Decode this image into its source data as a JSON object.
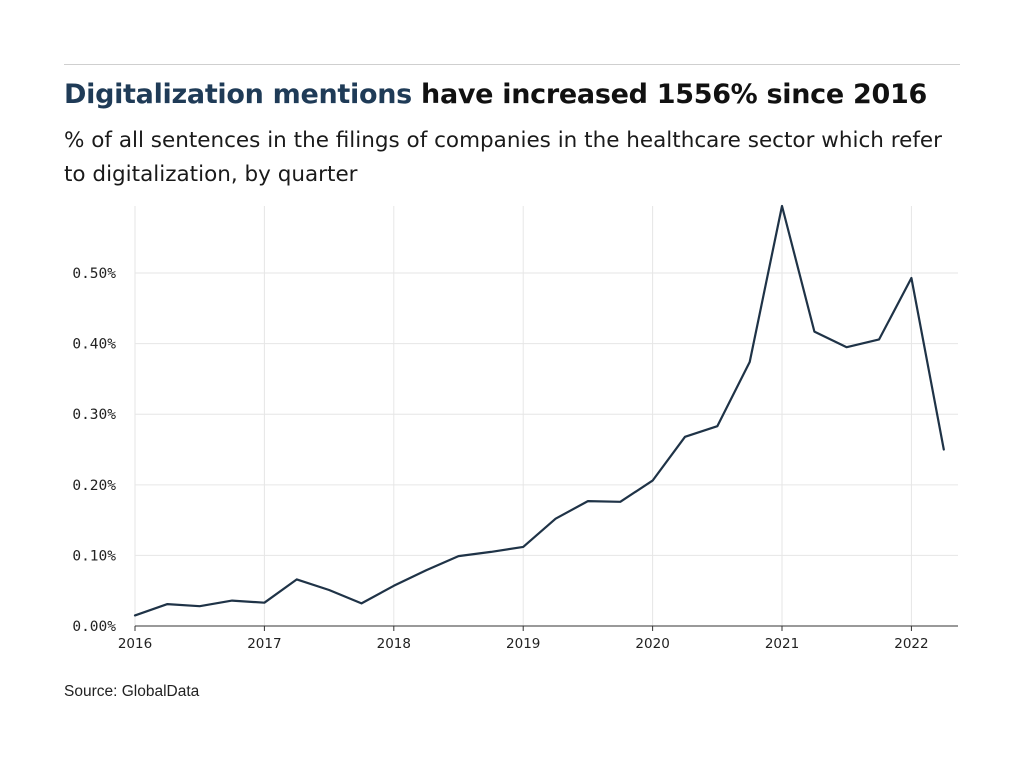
{
  "header": {
    "title_highlight": "Digitalization mentions",
    "title_rest": " have increased 1556% since 2016",
    "subtitle": "% of all sentences in the filings of companies in the healthcare sector which refer to digitalization, by quarter"
  },
  "source": "Source: GlobalData",
  "colors": {
    "line": "#1f3347",
    "grid": "#e6e6e6",
    "axis": "#333333",
    "highlight": "#1f3b57"
  },
  "chart_data": {
    "type": "line",
    "title": "Digitalization mentions have increased 1556% since 2016",
    "xlabel": "",
    "ylabel": "",
    "xlim": [
      2016,
      2022.36
    ],
    "ylim": [
      0,
      0.595
    ],
    "grid": true,
    "x_ticks": [
      2016,
      2017,
      2018,
      2019,
      2020,
      2021,
      2022
    ],
    "x_tick_labels": [
      "2016",
      "2017",
      "2018",
      "2019",
      "2020",
      "2021",
      "2022"
    ],
    "y_ticks": [
      0,
      0.1,
      0.2,
      0.3,
      0.4,
      0.5
    ],
    "y_tick_labels": [
      "0.00%",
      "0.10%",
      "0.20%",
      "0.30%",
      "0.40%",
      "0.50%"
    ],
    "series": [
      {
        "name": "Digitalization mentions (%)",
        "x": [
          2016,
          2016.25,
          2016.5,
          2016.75,
          2017,
          2017.25,
          2017.5,
          2017.75,
          2018,
          2018.25,
          2018.5,
          2018.75,
          2019,
          2019.25,
          2019.5,
          2019.75,
          2020,
          2020.25,
          2020.5,
          2020.75,
          2021,
          2021.25,
          2021.5,
          2021.75,
          2022,
          2022.25
        ],
        "values": [
          0.015,
          0.031,
          0.028,
          0.036,
          0.033,
          0.066,
          0.051,
          0.032,
          0.057,
          0.079,
          0.099,
          0.105,
          0.112,
          0.152,
          0.177,
          0.176,
          0.206,
          0.268,
          0.283,
          0.374,
          0.595,
          0.417,
          0.395,
          0.406,
          0.493,
          0.25
        ]
      }
    ]
  }
}
